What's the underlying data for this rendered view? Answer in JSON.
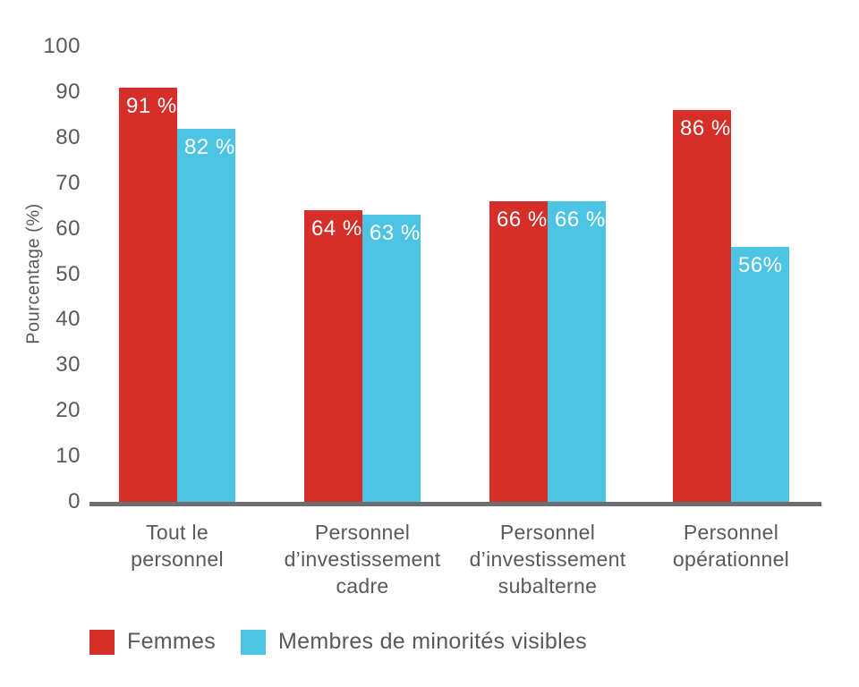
{
  "chart_data": {
    "type": "bar",
    "title": "",
    "xlabel": "",
    "ylabel": "Pourcentage (%)",
    "ylim": [
      0,
      100
    ],
    "yticks": [
      0,
      10,
      20,
      30,
      40,
      50,
      60,
      70,
      80,
      90,
      100
    ],
    "grid": false,
    "legend_position": "bottom",
    "categories": [
      [
        "Tout le",
        "personnel"
      ],
      [
        "Personnel",
        "d’investissement",
        "cadre"
      ],
      [
        "Personnel",
        "d’investissement",
        "subalterne"
      ],
      [
        "Personnel",
        "opérationnel"
      ]
    ],
    "series": [
      {
        "name": "Femmes",
        "color": "#d62e29",
        "values": [
          91,
          64,
          66,
          86
        ],
        "labels": [
          "91 %",
          "64 %",
          "66 %",
          "86 %"
        ]
      },
      {
        "name": "Membres de minorités visibles",
        "color": "#4ec4e4",
        "values": [
          82,
          63,
          66,
          56
        ],
        "labels": [
          "82 %",
          "63 %",
          "66 %",
          "56%"
        ]
      }
    ]
  },
  "colors": {
    "background": "#ffffff",
    "text": "#58595b",
    "axis": "#6d6e71",
    "value_label": "#ffffff"
  }
}
